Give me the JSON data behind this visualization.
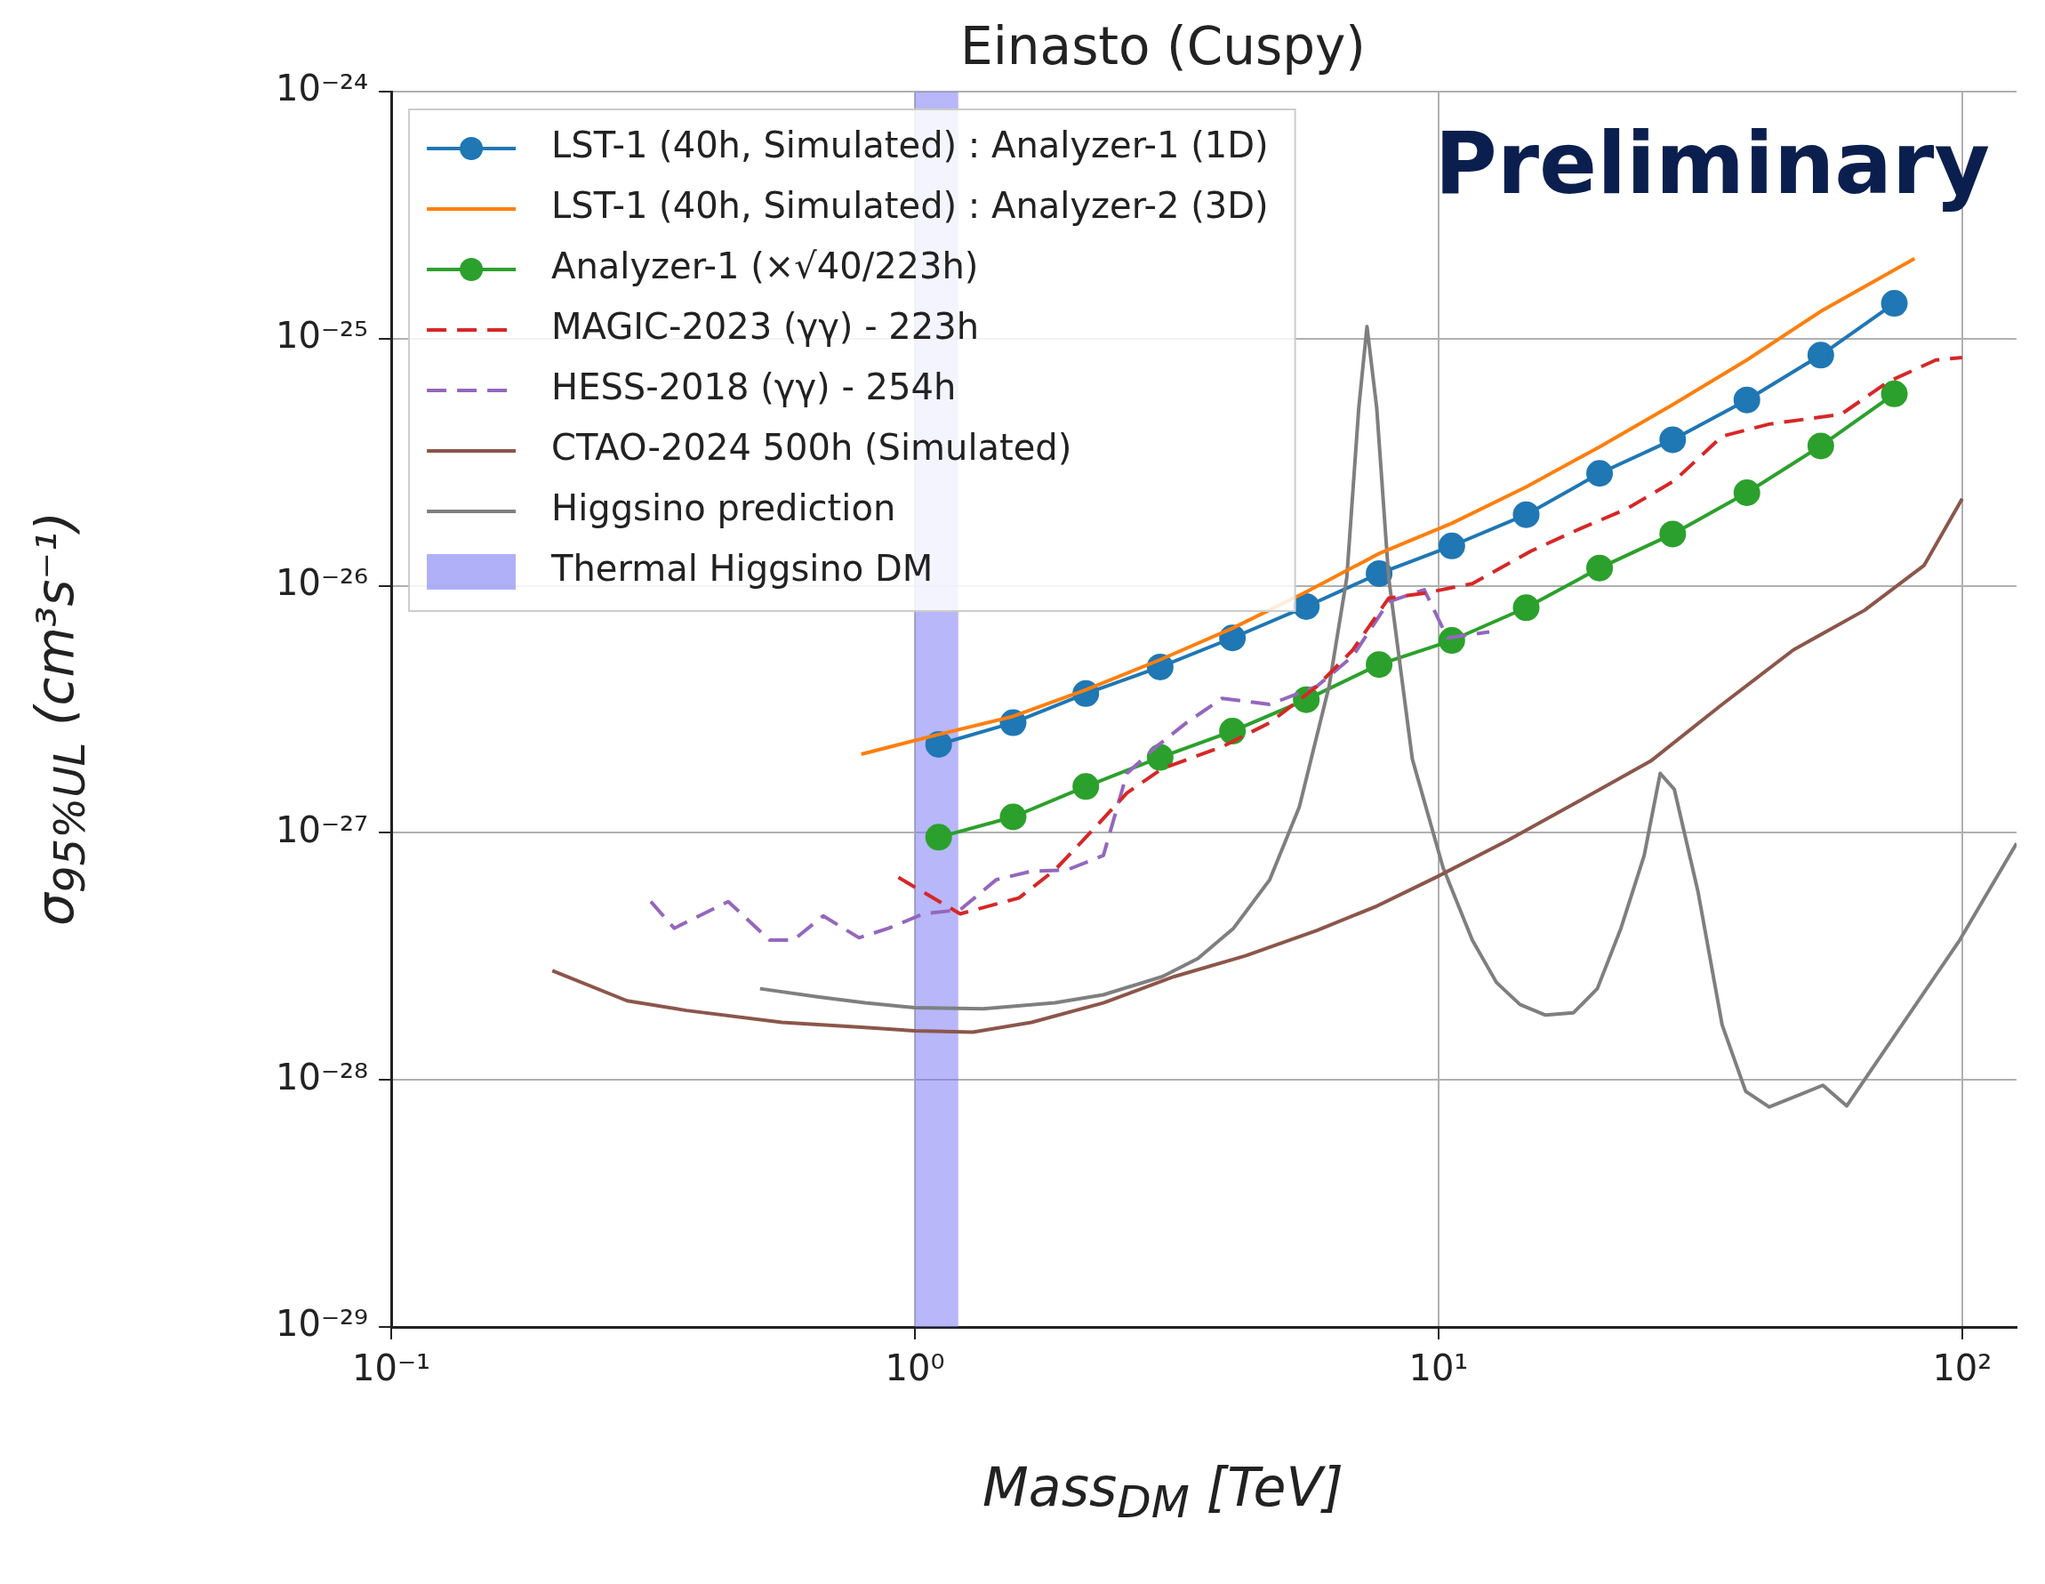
{
  "chart_data": {
    "type": "line",
    "title": "Einasto (Cuspy)",
    "xlabel": "Mass$_{DM}$ [TeV]",
    "ylabel": "σ$_{95%UL}$ (cm³s⁻¹)",
    "log": "xy",
    "grid": true,
    "legend": "top left",
    "annotations": [
      "Preliminary"
    ],
    "xlim": [
      0.1,
      127
    ],
    "xticks": [
      {
        "value": 0.1,
        "label": "10⁻¹"
      },
      {
        "value": 1,
        "label": "10⁰"
      },
      {
        "value": 10,
        "label": "10¹"
      },
      {
        "value": 100,
        "label": "10²"
      }
    ],
    "ylim": [
      1e-29,
      1e-24
    ],
    "yticks": [
      {
        "value": 1e-29,
        "label": "10⁻²⁹"
      },
      {
        "value": 1e-28,
        "label": "10⁻²⁸"
      },
      {
        "value": 1e-27,
        "label": "10⁻²⁷"
      },
      {
        "value": 1e-26,
        "label": "10⁻²⁶"
      },
      {
        "value": 1e-25,
        "label": "10⁻²⁵"
      },
      {
        "value": 1e-24,
        "label": "10⁻²⁴"
      }
    ],
    "bands": [
      {
        "axis": "x",
        "from": 1,
        "to": 1.21,
        "label": "Thermal Higgsino DM",
        "color": "#7b7bf5"
      }
    ],
    "series": [
      {
        "name": "LST-1 (40h, Simulated) : Analyzer-1 (1D)",
        "color": "#1f77b4",
        "marker": "circle",
        "line_style": "solid",
        "x": [
          1.11,
          1.54,
          2.12,
          2.94,
          4.04,
          5.59,
          7.7,
          10.6,
          14.7,
          20.3,
          28,
          38.8,
          53.7,
          74.2
        ],
        "values": [
          2.28e-27,
          2.79e-27,
          3.66e-27,
          4.69e-27,
          6.15e-27,
          8.24e-27,
          1.12e-26,
          1.45e-26,
          1.94e-26,
          2.85e-26,
          3.9e-26,
          5.65e-26,
          8.58e-26,
          1.39e-25
        ]
      },
      {
        "name": "LST-1 (40h, Simulated) : Analyzer-2 (3D)",
        "color": "#ff7f0e",
        "marker": "none",
        "line_style": "solid",
        "x": [
          0.79,
          1.1,
          1.54,
          2.12,
          2.94,
          4.04,
          5.59,
          7.7,
          10.6,
          14.7,
          20.3,
          28,
          38.8,
          53.7,
          81.1
        ],
        "values": [
          2.08e-27,
          2.49e-27,
          2.96e-27,
          3.79e-27,
          5.02e-27,
          6.73e-27,
          9.44e-27,
          1.35e-26,
          1.79e-26,
          2.51e-26,
          3.65e-26,
          5.41e-26,
          8.2e-26,
          1.29e-25,
          2.11e-25
        ]
      },
      {
        "name": "Analyzer-1 (×√40/223h)",
        "color": "#2ca02c",
        "marker": "circle",
        "line_style": "solid",
        "x": [
          1.11,
          1.54,
          2.12,
          2.94,
          4.04,
          5.59,
          7.7,
          10.6,
          14.7,
          20.3,
          28,
          38.8,
          53.7,
          74.2
        ],
        "values": [
          9.6e-28,
          1.16e-27,
          1.54e-27,
          2.02e-27,
          2.58e-27,
          3.46e-27,
          4.8e-27,
          6.01e-27,
          8.15e-27,
          1.18e-26,
          1.62e-26,
          2.38e-26,
          3.68e-26,
          5.98e-26
        ]
      },
      {
        "name": "MAGIC-2023 (γγ) - 223h",
        "color": "#d62728",
        "marker": "none",
        "line_style": "dashed",
        "x": [
          0.93,
          1.22,
          1.58,
          1.85,
          2.17,
          2.54,
          2.97,
          3.86,
          4.76,
          5.86,
          6.86,
          8.03,
          9.39,
          11.6,
          15,
          18.5,
          22.9,
          28.2,
          34.8,
          42.8,
          58.7,
          72.3,
          89.1,
          100
        ],
        "values": [
          6.6e-28,
          4.7e-28,
          5.45e-28,
          7.07e-28,
          1.01e-27,
          1.45e-27,
          1.82e-27,
          2.23e-27,
          2.79e-27,
          3.92e-27,
          5.5e-27,
          8.91e-27,
          9.33e-27,
          1.02e-26,
          1.38e-26,
          1.69e-26,
          2.05e-26,
          2.66e-26,
          4.03e-26,
          4.51e-26,
          4.94e-26,
          6.7e-26,
          8.2e-26,
          8.39e-26
        ]
      },
      {
        "name": "HESS-2018 (γγ) - 254h",
        "color": "#9467bd",
        "marker": "none",
        "line_style": "dashed",
        "x": [
          0.313,
          0.347,
          0.44,
          0.528,
          0.586,
          0.668,
          0.782,
          0.891,
          1.04,
          1.22,
          1.43,
          1.67,
          1.95,
          2.29,
          2.54,
          2.89,
          3.3,
          3.86,
          4.76,
          5.86,
          6.86,
          8.03,
          9.39,
          10.4,
          12.5
        ],
        "values": [
          5.27e-28,
          4.11e-28,
          5.27e-28,
          3.68e-28,
          3.68e-28,
          4.61e-28,
          3.76e-28,
          4.11e-28,
          4.71e-28,
          4.88e-28,
          6.46e-28,
          6.99e-28,
          7.07e-28,
          8.09e-28,
          1.74e-27,
          2.23e-27,
          2.79e-27,
          3.5e-27,
          3.31e-27,
          3.92e-27,
          5.19e-27,
          8.62e-27,
          9.64e-27,
          6.15e-27,
          6.5e-27
        ]
      },
      {
        "name": "CTAO-2024 500h (Simulated)",
        "color": "#8c564b",
        "marker": "none",
        "line_style": "solid",
        "x": [
          0.203,
          0.282,
          0.366,
          0.557,
          0.803,
          1,
          1.29,
          1.67,
          2.29,
          3.13,
          4.28,
          5.86,
          7.62,
          9.89,
          13.5,
          18.5,
          25.4,
          34.8,
          47.6,
          65.1,
          84.6,
          100
        ],
        "values": [
          2.77e-28,
          2.09e-28,
          1.91e-28,
          1.71e-28,
          1.63e-28,
          1.58e-28,
          1.56e-28,
          1.71e-28,
          2.05e-28,
          2.62e-28,
          3.18e-28,
          4.03e-28,
          5.05e-28,
          6.61e-28,
          9.27e-28,
          1.34e-27,
          1.95e-27,
          3.31e-27,
          5.5e-27,
          7.96e-27,
          1.21e-26,
          2.25e-26
        ]
      },
      {
        "name": "Higgsino prediction",
        "color": "#7f7f7f",
        "marker": "none",
        "line_style": "solid",
        "x": [
          0.506,
          0.651,
          0.803,
          1,
          1.35,
          1.85,
          2.29,
          2.97,
          3.47,
          4.06,
          4.76,
          5.42,
          6.18,
          6.68,
          7.04,
          7.3,
          7.62,
          8.03,
          8.91,
          10.2,
          11.6,
          12.9,
          14.3,
          16,
          18.1,
          20.1,
          22.3,
          24.7,
          26.5,
          28.2,
          31.3,
          34.8,
          38.6,
          42.8,
          54.2,
          60.2,
          98.9,
          127
        ],
        "values": [
          2.34e-28,
          2.17e-28,
          2.05e-28,
          1.96e-28,
          1.94e-28,
          2.05e-28,
          2.21e-28,
          2.62e-28,
          3.1e-28,
          4.11e-28,
          6.46e-28,
          1.27e-27,
          3.92e-27,
          1.08e-26,
          5.23e-26,
          1.12e-25,
          5.23e-26,
          1.08e-26,
          1.99e-27,
          7.23e-28,
          3.68e-28,
          2.48e-28,
          2.02e-28,
          1.83e-28,
          1.87e-28,
          2.34e-28,
          4.11e-28,
          8.09e-28,
          1.74e-27,
          1.5e-27,
          5.77e-28,
          1.67e-28,
          8.99e-29,
          7.77e-29,
          9.51e-29,
          7.85e-29,
          3.68e-28,
          9.06e-28
        ]
      }
    ]
  }
}
